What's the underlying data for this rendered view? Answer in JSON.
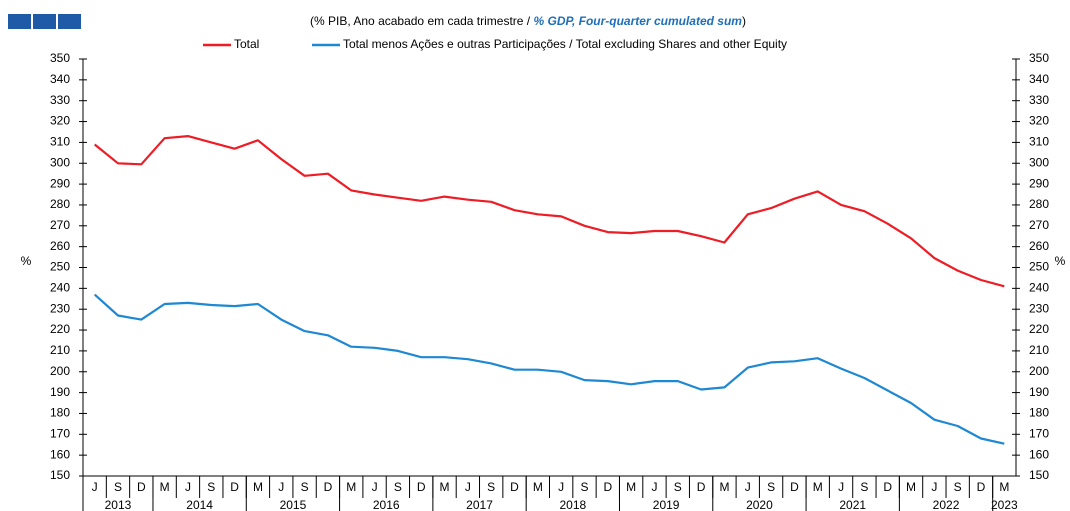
{
  "chart_data": {
    "type": "line",
    "subtitle_pt": "(% PIB, Ano acabado em cada trimestre /",
    "subtitle_en": "% GDP, Four-quarter cumulated sum",
    "subtitle_close": ")",
    "y_label": "%",
    "y2_label": "%",
    "categories": [
      "J",
      "S",
      "D",
      "M",
      "J",
      "S",
      "D",
      "M",
      "J",
      "S",
      "D",
      "M",
      "J",
      "S",
      "D",
      "M",
      "J",
      "S",
      "D",
      "M",
      "J",
      "S",
      "D",
      "M",
      "J",
      "S",
      "D",
      "M",
      "J",
      "S",
      "D",
      "M",
      "J",
      "S",
      "D",
      "M",
      "J",
      "S",
      "D",
      "M"
    ],
    "year_groups": [
      {
        "label": "2013",
        "span": 3
      },
      {
        "label": "2014",
        "span": 4
      },
      {
        "label": "2015",
        "span": 4
      },
      {
        "label": "2016",
        "span": 4
      },
      {
        "label": "2017",
        "span": 4
      },
      {
        "label": "2018",
        "span": 4
      },
      {
        "label": "2019",
        "span": 4
      },
      {
        "label": "2020",
        "span": 4
      },
      {
        "label": "2021",
        "span": 4
      },
      {
        "label": "2022",
        "span": 4
      },
      {
        "label": "2023",
        "span": 1
      }
    ],
    "series": [
      {
        "name": "Total",
        "color": "#ee1c25",
        "values": [
          309,
          300,
          299.5,
          312,
          313,
          310,
          307,
          311,
          302,
          294,
          295,
          287,
          285,
          283.5,
          282,
          284,
          282.5,
          281.5,
          277.5,
          275.5,
          274.5,
          270,
          267,
          266.5,
          267.5,
          267.5,
          265,
          262,
          275.5,
          278.5,
          283,
          286.5,
          280,
          277,
          271,
          264,
          254.5,
          248.5,
          244,
          241
        ]
      },
      {
        "name": "Total menos Ações e outras Participações / Total excluding Shares and other Equity",
        "color": "#1e88d2",
        "values": [
          237,
          227,
          225,
          232.5,
          233,
          232,
          231.5,
          232.5,
          225,
          219.5,
          217.5,
          212,
          211.5,
          210,
          207,
          207,
          206,
          204,
          201,
          201,
          200,
          196,
          195.5,
          194,
          195.5,
          195.5,
          191.5,
          192.5,
          202,
          204.5,
          205,
          206.5,
          201.5,
          197,
          191,
          185,
          177,
          174,
          168,
          165.5
        ]
      }
    ],
    "ylim": [
      150,
      350
    ],
    "yticks": [
      150,
      160,
      170,
      180,
      190,
      200,
      210,
      220,
      230,
      240,
      250,
      260,
      270,
      280,
      290,
      300,
      310,
      320,
      330,
      340,
      350
    ],
    "y2lim": [
      150,
      350
    ],
    "y2ticks": [
      150,
      160,
      170,
      180,
      190,
      200,
      210,
      220,
      230,
      240,
      250,
      260,
      270,
      280,
      290,
      300,
      310,
      320,
      330,
      340,
      350
    ]
  }
}
